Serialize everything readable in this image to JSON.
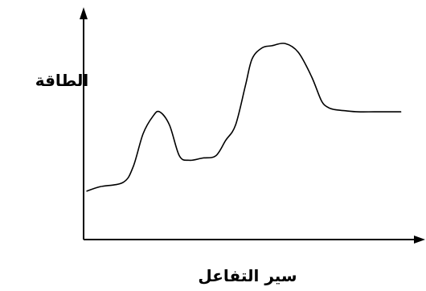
{
  "chart_data": {
    "type": "line",
    "xlabel": "سير التفاعل",
    "ylabel": "الطاقة",
    "xlim": [
      0,
      10
    ],
    "ylim": [
      0,
      10
    ],
    "grid": false,
    "legend": "none",
    "series": [
      {
        "color": "#000000",
        "x": [
          0.1,
          0.5,
          1.2,
          1.5,
          1.8,
          2.1,
          2.3,
          2.6,
          2.9,
          3.2,
          3.6,
          4.0,
          4.3,
          4.6,
          4.9,
          5.1,
          5.4,
          5.7,
          6.1,
          6.5,
          6.9,
          7.2,
          7.4,
          7.6,
          7.9,
          8.3,
          8.8,
          9.3,
          9.6
        ],
        "y": [
          2.2,
          2.4,
          2.6,
          3.3,
          4.8,
          5.6,
          5.8,
          5.2,
          3.8,
          3.6,
          3.7,
          3.8,
          4.5,
          5.2,
          7.0,
          8.2,
          8.7,
          8.8,
          8.9,
          8.5,
          7.4,
          6.3,
          6.0,
          5.9,
          5.85,
          5.8,
          5.8,
          5.8,
          5.8
        ]
      }
    ]
  }
}
